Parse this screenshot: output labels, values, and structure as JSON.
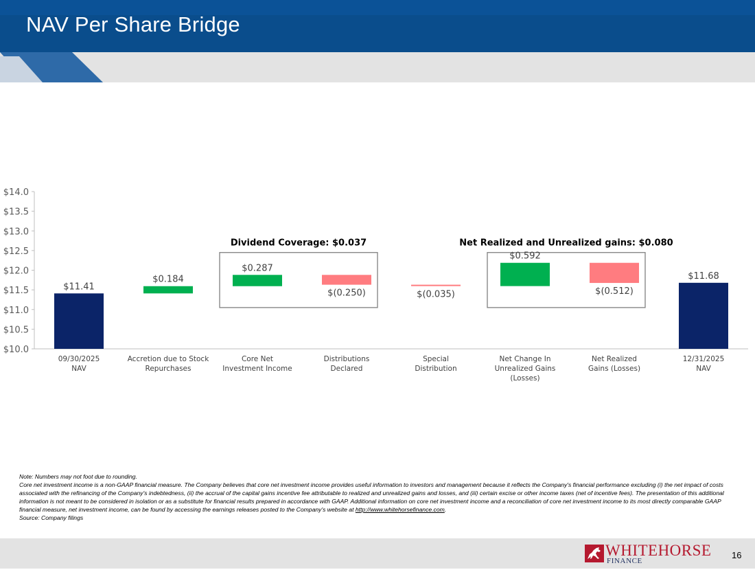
{
  "slide": {
    "title": "NAV Per Share Bridge",
    "page_number": "16"
  },
  "colors": {
    "header_blue": "#0a4d8c",
    "navy_bar": "#0b2468",
    "increase_green": "#00b050",
    "decrease_red": "#ff7c80",
    "box_border": "#7f7f7f",
    "footer_gray": "#e3e3e3",
    "logo_red": "#b5192f"
  },
  "notes": {
    "line1": "Note: Numbers may not foot due to rounding.",
    "line2": "Core net investment income is a non-GAAP financial measure. The Company believes that core net investment income provides useful information to investors and management because it reflects the Company's financial performance excluding (i) the net impact of costs associated with the refinancing of the Company's indebtedness, (ii) the accrual of the capital gains incentive fee attributable to realized and unrealized gains and losses, and (iii) certain excise or other income taxes (net of incentive fees). The presentation of this additional information is not meant to be considered in isolation or as a substitute for financial results prepared in accordance with GAAP. Additional information on core net investment income and a reconciliation of core net investment income to its most directly comparable GAAP financial measure, net investment income, can be found by accessing the earnings releases posted to the Company's website at",
    "link_text": "http://www.whitehorsefinance.com",
    "line2_end": ".",
    "line3": "Source: Company filings"
  },
  "logo": {
    "name_top": "WHITEHORSE",
    "name_bottom": "FINANCE"
  },
  "chart_data": {
    "type": "bar",
    "subtype": "waterfall",
    "title": "",
    "xlabel": "",
    "ylabel": "",
    "ylim": [
      10.0,
      14.0
    ],
    "y_ticks": [
      "$10.0",
      "$10.5",
      "$11.0",
      "$11.5",
      "$12.0",
      "$12.5",
      "$13.0",
      "$13.5",
      "$14.0"
    ],
    "y_tick_values": [
      10.0,
      10.5,
      11.0,
      11.5,
      12.0,
      12.5,
      13.0,
      13.5,
      14.0
    ],
    "grid": false,
    "bars": [
      {
        "label": [
          "09/30/2025",
          "NAV"
        ],
        "kind": "total",
        "base": 10.0,
        "top": 11.41,
        "value_label": "$11.41",
        "label_pos": "above"
      },
      {
        "label": [
          "Accretion due to  Stock",
          "Repurchases"
        ],
        "kind": "increase",
        "base": 11.41,
        "top": 11.594,
        "value_label": "$0.184",
        "label_pos": "above"
      },
      {
        "label": [
          "Core Net",
          "Investment Income"
        ],
        "kind": "increase",
        "base": 11.594,
        "top": 11.881,
        "value_label": "$0.287",
        "label_pos": "above"
      },
      {
        "label": [
          "Distributions",
          "Declared"
        ],
        "kind": "decrease",
        "base": 11.631,
        "top": 11.881,
        "value_label": "$(0.250)",
        "label_pos": "below"
      },
      {
        "label": [
          "Special",
          "Distribution"
        ],
        "kind": "decrease",
        "base": 11.596,
        "top": 11.631,
        "value_label": "$(0.035)",
        "label_pos": "below"
      },
      {
        "label": [
          "Net Change In",
          "Unrealized Gains",
          "(Losses)"
        ],
        "kind": "increase",
        "base": 11.596,
        "top": 12.188,
        "value_label": "$0.592",
        "label_pos": "above"
      },
      {
        "label": [
          "Net Realized",
          "Gains (Losses)"
        ],
        "kind": "decrease",
        "base": 11.676,
        "top": 12.188,
        "value_label": "$(0.512)",
        "label_pos": "below"
      },
      {
        "label": [
          "12/31/2025",
          "NAV"
        ],
        "kind": "total",
        "base": 10.0,
        "top": 11.68,
        "value_label": "$11.68",
        "label_pos": "above"
      }
    ],
    "annotations": [
      {
        "text": "Dividend Coverage: $0.037",
        "from_bar": 2,
        "to_bar": 3,
        "ymin": 11.05,
        "ymax": 12.45
      },
      {
        "text": "Net Realized and Unrealized gains: $0.080",
        "from_bar": 5,
        "to_bar": 6,
        "ymin": 11.05,
        "ymax": 12.45
      }
    ]
  }
}
